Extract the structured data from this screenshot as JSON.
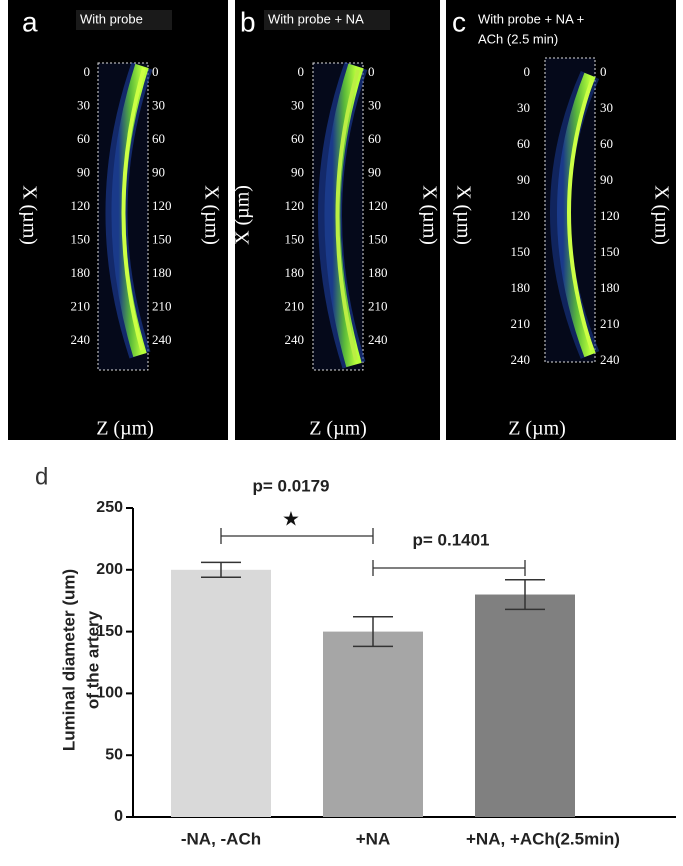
{
  "panels": [
    {
      "letter": "a",
      "title": [
        "With probe"
      ],
      "yticks": [
        0,
        30,
        60,
        90,
        120,
        150,
        180,
        210,
        240
      ],
      "ylabel": "X (µm)",
      "xlabel": "Z (µm)"
    },
    {
      "letter": "b",
      "title": [
        "With probe + NA"
      ],
      "yticks": [
        0,
        30,
        60,
        90,
        120,
        150,
        180,
        210,
        240
      ],
      "ylabel": "X (µm)",
      "xlabel": "Z (µm)"
    },
    {
      "letter": "c",
      "title": [
        "With probe + NA +",
        "ACh (2.5 min)"
      ],
      "yticks": [
        0,
        30,
        60,
        90,
        120,
        150,
        180,
        210,
        240
      ],
      "ylabel": "X (µm)",
      "xlabel": "Z (µm)"
    }
  ],
  "chart_data": {
    "type": "bar",
    "panel_label": "d",
    "categories": [
      "-NA, -ACh",
      "+NA",
      "+NA, +ACh(2.5min)"
    ],
    "values": [
      200,
      150,
      180
    ],
    "errors": [
      6,
      12,
      12
    ],
    "colors": [
      "#d9d9d9",
      "#a6a6a6",
      "#808080"
    ],
    "ylabel": [
      "Luminal diameter (um)",
      "of the artery"
    ],
    "ylim": [
      0,
      250
    ],
    "yticks": [
      0,
      50,
      100,
      150,
      200,
      250
    ],
    "annotations": [
      {
        "text": "p= 0.0179",
        "marker": "★",
        "from": 0,
        "to": 1
      },
      {
        "text": "p= 0.1401",
        "from": 1,
        "to": 2
      }
    ]
  }
}
